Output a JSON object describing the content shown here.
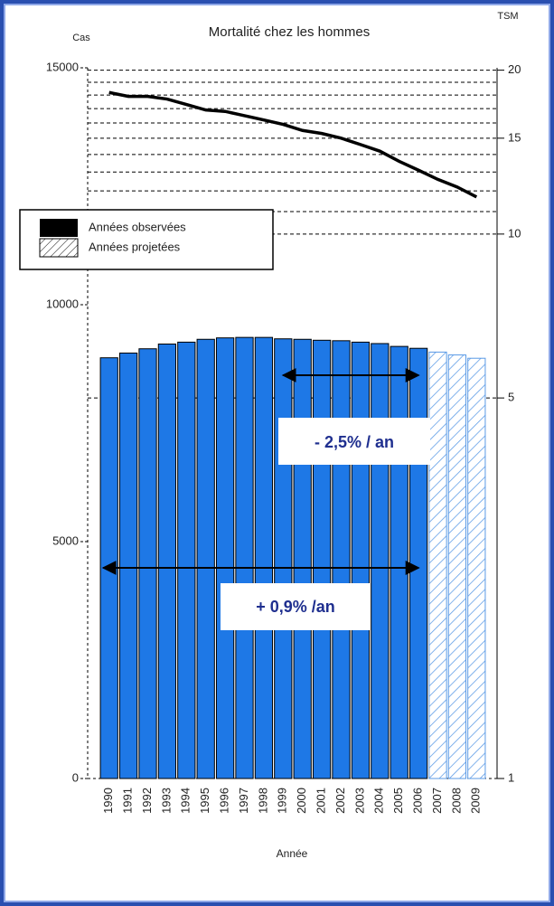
{
  "chart_data": {
    "type": "bar",
    "title": "Mortalité chez les hommes",
    "y_label": "Cas",
    "y2_label": "TSM",
    "x_label": "Année",
    "categories": [
      "1990",
      "1991",
      "1992",
      "1993",
      "1994",
      "1995",
      "1996",
      "1997",
      "1998",
      "1999",
      "2000",
      "2001",
      "2002",
      "2003",
      "2004",
      "2005",
      "2006",
      "2007",
      "2008",
      "2009"
    ],
    "series": [
      {
        "name": "Années observées",
        "color": "#1e78e6",
        "values": [
          8880,
          8980,
          9070,
          9170,
          9210,
          9270,
          9300,
          9310,
          9310,
          9280,
          9270,
          9250,
          9240,
          9210,
          9180,
          9120,
          9080,
          null,
          null,
          null
        ]
      },
      {
        "name": "Années projetées",
        "color": "#5a9ae6",
        "values": [
          null,
          null,
          null,
          null,
          null,
          null,
          null,
          null,
          null,
          null,
          null,
          null,
          null,
          null,
          null,
          null,
          null,
          9000,
          8940,
          8870
        ]
      },
      {
        "name": "TSM",
        "type": "line",
        "axis": "y2",
        "color": "#000000",
        "values": [
          18.2,
          17.9,
          17.9,
          17.7,
          17.3,
          16.9,
          16.8,
          16.5,
          16.2,
          15.9,
          15.5,
          15.3,
          15.0,
          14.6,
          14.2,
          13.6,
          13.1,
          12.6,
          12.2,
          11.7
        ]
      }
    ],
    "ylim": [
      0,
      15000
    ],
    "yticks": [
      0,
      5000,
      10000,
      15000
    ],
    "y2lim": [
      1,
      20.2
    ],
    "y2log": true,
    "y2ticks": [
      1,
      5,
      10,
      15,
      20
    ],
    "y2grid": [
      5,
      10,
      11,
      12,
      13,
      14,
      15,
      16,
      17,
      18,
      19,
      20
    ],
    "annotations": [
      "- 2,5% / an",
      "+ 0,9% /an"
    ]
  }
}
